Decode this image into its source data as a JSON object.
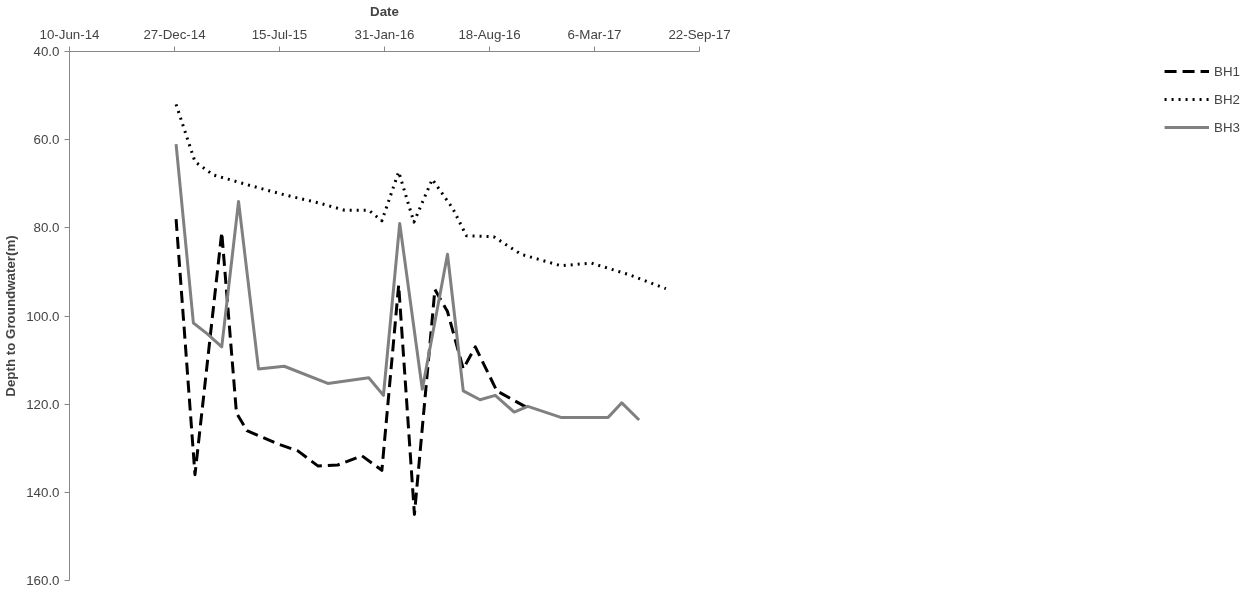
{
  "chart_data": {
    "type": "line",
    "xlabel": "Date",
    "ylabel": "Depth to Groundwater(m)",
    "xlim": [
      "2014-06-10",
      "2017-09-22"
    ],
    "xticks": [
      {
        "value": "2014-06-10",
        "label": "10-Jun-14"
      },
      {
        "value": "2014-12-27",
        "label": "27-Dec-14"
      },
      {
        "value": "2015-07-15",
        "label": "15-Jul-15"
      },
      {
        "value": "2016-01-31",
        "label": "31-Jan-16"
      },
      {
        "value": "2016-08-18",
        "label": "18-Aug-16"
      },
      {
        "value": "2017-03-06",
        "label": "6-Mar-17"
      },
      {
        "value": "2017-09-22",
        "label": "22-Sep-17"
      }
    ],
    "ylim": [
      160,
      40
    ],
    "yticks": [
      {
        "value": 40,
        "label": "40.0"
      },
      {
        "value": 60,
        "label": "60.0"
      },
      {
        "value": 80,
        "label": "80.0"
      },
      {
        "value": 100,
        "label": "100.0"
      },
      {
        "value": 120,
        "label": "120.0"
      },
      {
        "value": 140,
        "label": "140.0"
      },
      {
        "value": 160,
        "label": "160.0"
      }
    ],
    "grid": false,
    "legend": "right",
    "marker": "none",
    "series": [
      {
        "name": "BH1",
        "color": "#000000",
        "line_style": "dashed",
        "x": [
          "2014-12-30",
          "2015-02-04",
          "2015-03-27",
          "2015-04-24",
          "2015-05-14",
          "2015-07-11",
          "2015-08-19",
          "2015-09-26",
          "2015-11-03",
          "2015-12-19",
          "2016-01-26",
          "2016-02-27",
          "2016-03-28",
          "2016-05-06",
          "2016-05-30",
          "2016-06-29",
          "2016-07-22",
          "2016-09-01",
          "2016-11-01"
        ],
        "values": [
          78,
          136,
          81,
          122,
          126,
          129,
          130.6,
          134,
          133.8,
          131.7,
          135,
          93,
          145,
          94,
          99,
          112,
          107,
          117,
          121
        ]
      },
      {
        "name": "BH2",
        "color": "#000000",
        "line_style": "dotted",
        "x": [
          "2014-12-30",
          "2015-02-04",
          "2015-03-11",
          "2015-05-20",
          "2015-07-24",
          "2015-09-26",
          "2015-11-16",
          "2016-01-01",
          "2016-01-26",
          "2016-02-27",
          "2016-03-27",
          "2016-05-01",
          "2016-06-09",
          "2016-07-05",
          "2016-08-26",
          "2016-10-17",
          "2017-01-01",
          "2017-02-28",
          "2017-05-10",
          "2017-07-20"
        ],
        "values": [
          52,
          65,
          68,
          70.4,
          72.5,
          74.3,
          76,
          76,
          78.4,
          67.3,
          78.7,
          69,
          75.6,
          81.8,
          82,
          86,
          88.6,
          88,
          90.6,
          93.8
        ]
      },
      {
        "name": "BH3",
        "color": "#808080",
        "line_style": "solid",
        "x": [
          "2014-12-30",
          "2015-02-01",
          "2015-02-27",
          "2015-03-27",
          "2015-04-28",
          "2015-06-05",
          "2015-07-24",
          "2015-10-15",
          "2016-01-01",
          "2016-01-29",
          "2016-02-29",
          "2016-04-12",
          "2016-05-30",
          "2016-06-29",
          "2016-07-31",
          "2016-08-29",
          "2016-10-04",
          "2016-10-30",
          "2017-01-01",
          "2017-04-01",
          "2017-04-27",
          "2017-05-30"
        ],
        "values": [
          61,
          101.6,
          104,
          107,
          74,
          112,
          111.4,
          115.3,
          114,
          118,
          79,
          116.6,
          86,
          117,
          119,
          118,
          121.8,
          120.5,
          123,
          123,
          119.7,
          123.6
        ]
      }
    ]
  }
}
